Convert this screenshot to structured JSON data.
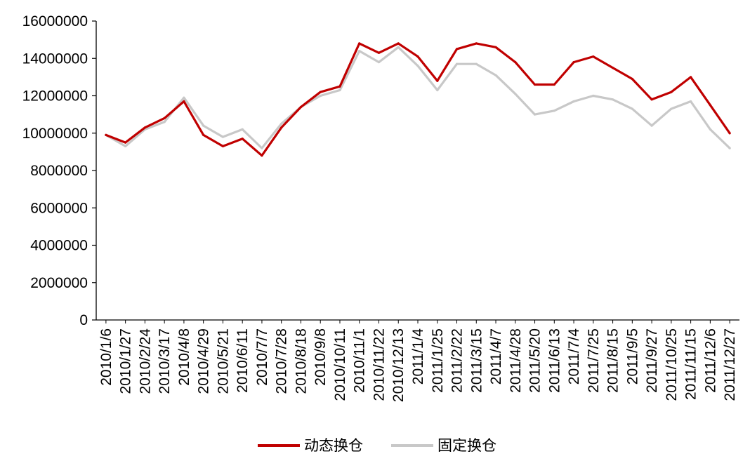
{
  "chart_data": {
    "type": "line",
    "title": "",
    "xlabel": "",
    "ylabel": "",
    "ylim": [
      0,
      16000000
    ],
    "yticks": [
      0,
      2000000,
      4000000,
      6000000,
      8000000,
      10000000,
      12000000,
      14000000,
      16000000
    ],
    "grid": false,
    "legend": "bottom",
    "categories": [
      "2010/1/6",
      "2010/1/27",
      "2010/2/24",
      "2010/3/17",
      "2010/4/8",
      "2010/4/29",
      "2010/5/21",
      "2010/6/11",
      "2010/7/7",
      "2010/7/28",
      "2010/8/18",
      "2010/9/8",
      "2010/10/11",
      "2010/11/1",
      "2010/11/22",
      "2010/12/13",
      "2011/1/4",
      "2011/1/25",
      "2011/2/22",
      "2011/3/15",
      "2011/4/7",
      "2011/4/28",
      "2011/5/20",
      "2011/6/13",
      "2011/7/4",
      "2011/7/25",
      "2011/8/15",
      "2011/9/5",
      "2011/9/27",
      "2011/10/25",
      "2011/11/15",
      "2011/12/6",
      "2011/12/27"
    ],
    "series": [
      {
        "name": "动态换仓",
        "color": "#C00000",
        "values": [
          9900000,
          9500000,
          10300000,
          10800000,
          11700000,
          9900000,
          9300000,
          9700000,
          8800000,
          10300000,
          11400000,
          12200000,
          12500000,
          14800000,
          14300000,
          14800000,
          14100000,
          12800000,
          14500000,
          14800000,
          14600000,
          13800000,
          12600000,
          12600000,
          13800000,
          14100000,
          13500000,
          12900000,
          11800000,
          12200000,
          13000000,
          11500000,
          10000000
        ]
      },
      {
        "name": "固定换仓",
        "color": "#C8C8C8",
        "values": [
          9900000,
          9300000,
          10200000,
          10600000,
          11900000,
          10400000,
          9800000,
          10200000,
          9200000,
          10500000,
          11400000,
          12000000,
          12300000,
          14400000,
          13800000,
          14600000,
          13600000,
          12300000,
          13700000,
          13700000,
          13100000,
          12100000,
          11000000,
          11200000,
          11700000,
          12000000,
          11800000,
          11300000,
          10400000,
          11300000,
          11700000,
          10200000,
          9200000
        ]
      }
    ]
  }
}
